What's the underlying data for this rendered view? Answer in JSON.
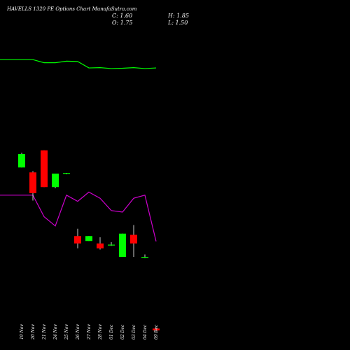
{
  "header": {
    "title": "HAVELLS 1320 PE Options Chart MunafaSutra.com",
    "close": "C: 1.60",
    "high": "H: 1.85",
    "open": "O: 1.75",
    "low": "L: 1.50"
  },
  "colors": {
    "background": "#000000",
    "bull": "#00ff00",
    "bear": "#ff0000",
    "upper_line": "#00ff00",
    "lower_line": "#cc00cc"
  },
  "chart_data": {
    "type": "candlestick",
    "title": "HAVELLS 1320 PE Options Chart MunafaSutra.com",
    "categories": [
      "19 Nov",
      "20 Nov",
      "21 Nov",
      "24 Nov",
      "25 Nov",
      "26 Nov",
      "27 Nov",
      "28 Nov",
      "01 Dec",
      "02 Dec",
      "03 Dec",
      "04 Dec",
      "09 Dec"
    ],
    "candles": [
      {
        "date": "19 Nov",
        "open": 16.0,
        "high": 16.1,
        "low": 14.9,
        "close": 14.9,
        "direction": "up"
      },
      {
        "date": "20 Nov",
        "open": 14.5,
        "high": 14.6,
        "low": 12.2,
        "close": 12.8,
        "direction": "down"
      },
      {
        "date": "21 Nov",
        "open": 16.3,
        "high": 16.3,
        "low": 13.3,
        "close": 13.3,
        "direction": "down"
      },
      {
        "date": "24 Nov",
        "open": 13.3,
        "high": 14.4,
        "low": 13.2,
        "close": 14.4,
        "direction": "up"
      },
      {
        "date": "25 Nov",
        "open": 14.45,
        "high": 14.45,
        "low": 14.35,
        "close": 14.4,
        "direction": "up"
      },
      {
        "date": "26 Nov",
        "open": 9.3,
        "high": 9.9,
        "low": 8.3,
        "close": 8.7,
        "direction": "down"
      },
      {
        "date": "27 Nov",
        "open": 8.9,
        "high": 9.3,
        "low": 8.9,
        "close": 9.3,
        "direction": "up"
      },
      {
        "date": "28 Nov",
        "open": 8.7,
        "high": 9.2,
        "low": 8.2,
        "close": 8.3,
        "direction": "down"
      },
      {
        "date": "01 Dec",
        "open": 8.55,
        "high": 8.8,
        "low": 8.5,
        "close": 8.6,
        "direction": "up"
      },
      {
        "date": "02 Dec",
        "open": 7.6,
        "high": 9.5,
        "low": 7.6,
        "close": 9.5,
        "direction": "up"
      },
      {
        "date": "03 Dec",
        "open": 9.4,
        "high": 10.2,
        "low": 7.6,
        "close": 8.7,
        "direction": "down"
      },
      {
        "date": "04 Dec",
        "open": 7.6,
        "high": 7.8,
        "low": 7.5,
        "close": 7.6,
        "direction": "up"
      },
      {
        "date": "09 Dec",
        "open": 1.75,
        "high": 1.85,
        "low": 1.5,
        "close": 1.6,
        "direction": "down"
      }
    ],
    "lines": [
      {
        "color": "#00ff00",
        "values": [
          92,
          92,
          91,
          91,
          91.5,
          91.4,
          89.3,
          89.4,
          89.1,
          89.2,
          89.4,
          89.1,
          89.3
        ],
        "extends_left": true
      },
      {
        "color": "#cc00cc",
        "values": [
          48,
          48,
          41,
          38,
          48,
          46,
          49,
          47,
          43,
          42.5,
          47,
          48,
          33
        ],
        "extends_left": true
      }
    ]
  },
  "x_labels": [
    "19 Nov",
    "20 Nov",
    "21 Nov",
    "24 Nov",
    "25 Nov",
    "26 Nov",
    "27 Nov",
    "28 Nov",
    "01 Dec",
    "02 Dec",
    "03 Dec",
    "04 Dec",
    "09 Dec"
  ]
}
